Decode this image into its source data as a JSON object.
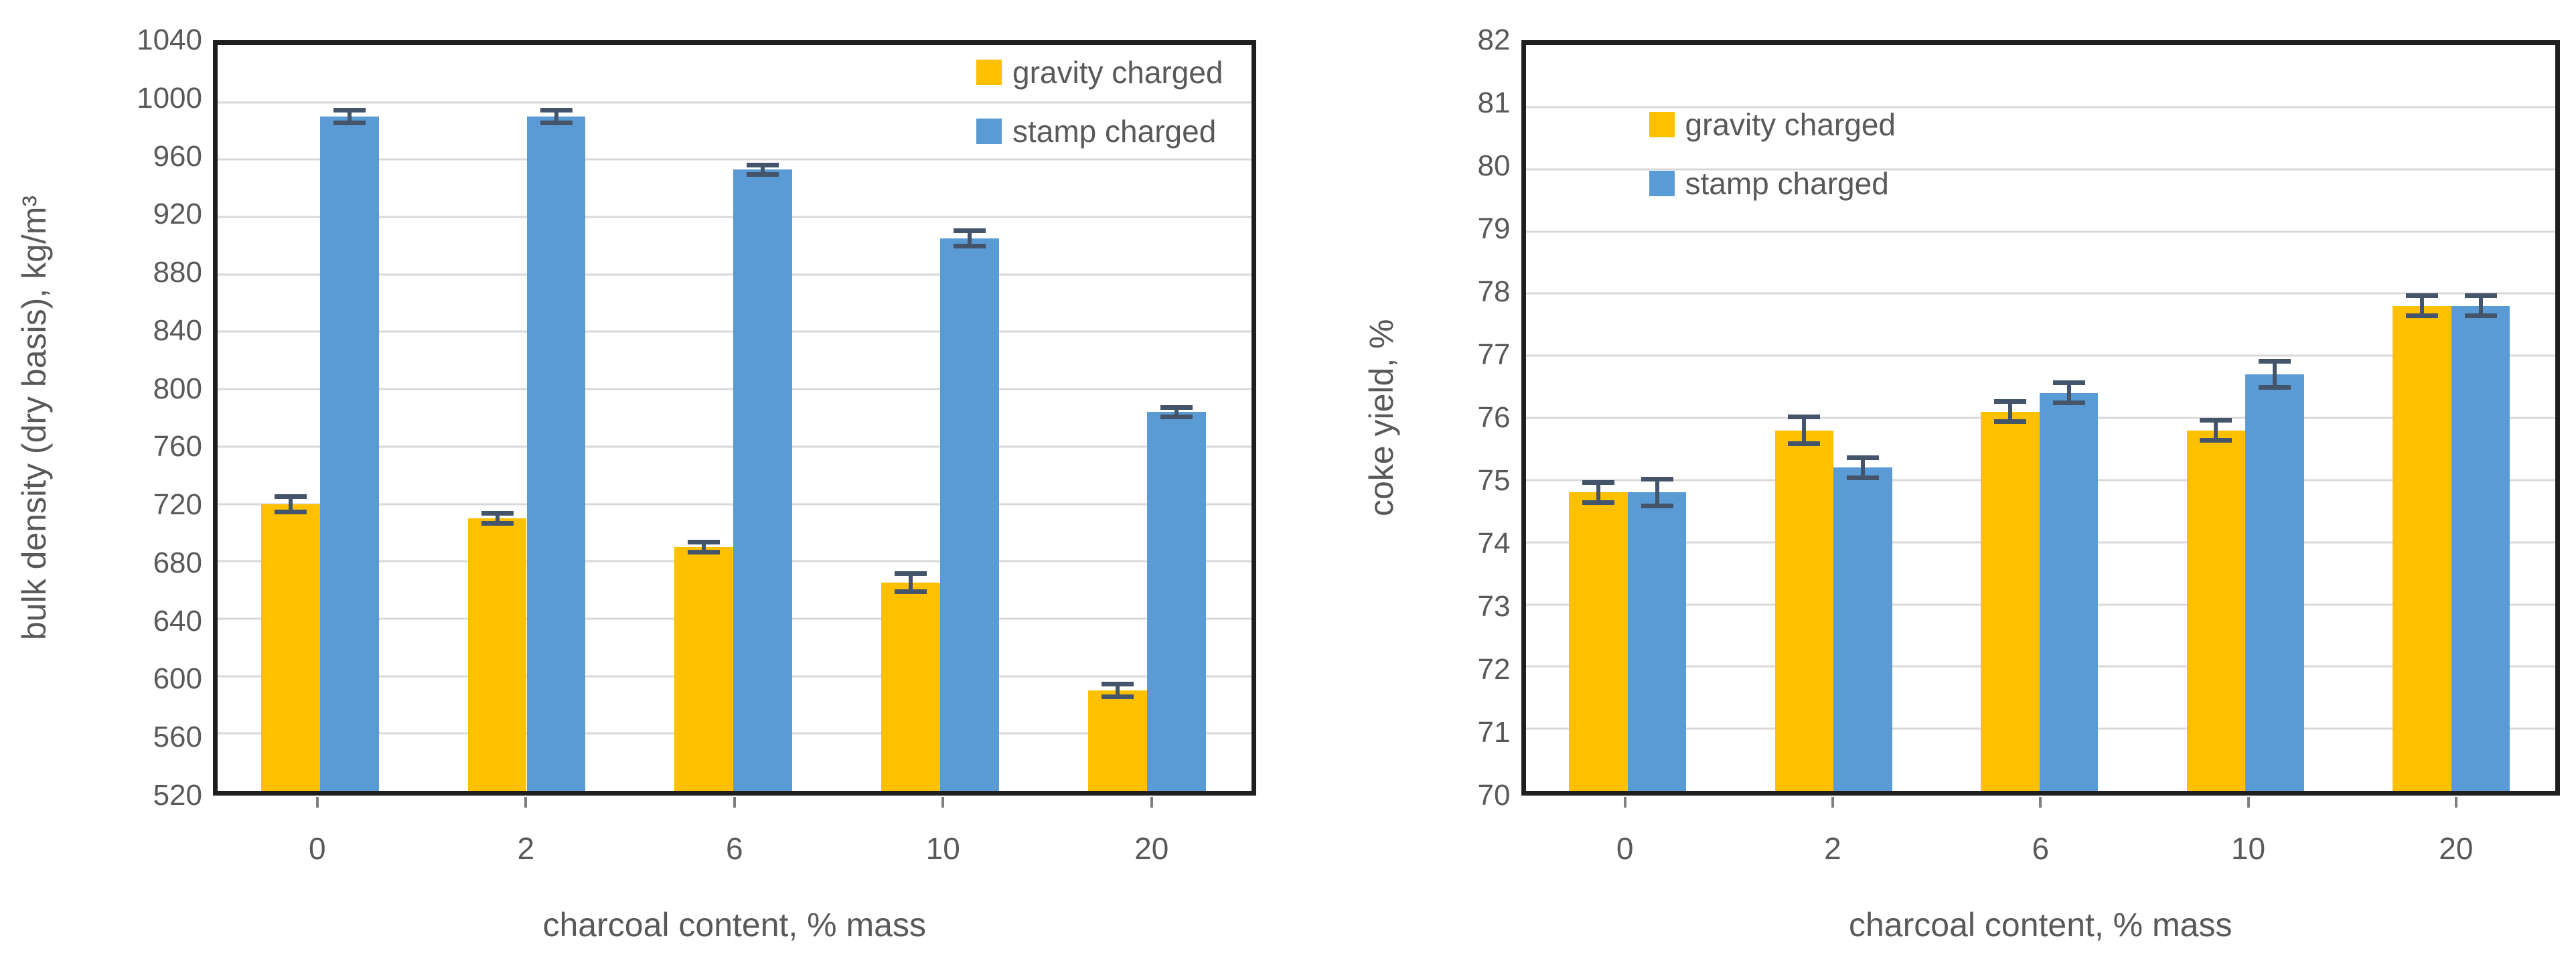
{
  "figure": {
    "background": "#ffffff"
  },
  "colors": {
    "gravity_series": "#FFC000",
    "stamp_series": "#5B9BD5",
    "gridline": "#D9D9D9",
    "axis_text": "#595959",
    "frame": "#1f1f1f",
    "error_bar": "#44546A"
  },
  "chart_data": [
    {
      "type": "bar",
      "title": "",
      "categories": [
        "0",
        "2",
        "6",
        "10",
        "20"
      ],
      "xlabel": "charcoal content, % mass",
      "ylabel": "bulk density (dry basis), kg/m³",
      "ylim": [
        520,
        1040
      ],
      "ytick_step": 40,
      "grid": true,
      "legend_position": "top-right",
      "series": [
        {
          "name": "gravity charged",
          "color": "#FFC000",
          "values": [
            720,
            710,
            690,
            665,
            590
          ],
          "errors": [
            7,
            5,
            5,
            8,
            6
          ]
        },
        {
          "name": "stamp charged",
          "color": "#5B9BD5",
          "values": [
            990,
            990,
            953,
            905,
            784
          ],
          "errors": [
            6,
            6,
            5,
            7,
            5
          ]
        }
      ]
    },
    {
      "type": "bar",
      "title": "",
      "categories": [
        "0",
        "2",
        "6",
        "10",
        "20"
      ],
      "xlabel": "charcoal content, % mass",
      "ylabel": "coke yield, %",
      "ylim": [
        70,
        82
      ],
      "ytick_step": 1,
      "grid": true,
      "legend_position": "top-left",
      "series": [
        {
          "name": "gravity charged",
          "color": "#FFC000",
          "values": [
            74.8,
            75.8,
            76.1,
            75.8,
            77.8
          ],
          "errors": [
            0.2,
            0.25,
            0.2,
            0.2,
            0.2
          ]
        },
        {
          "name": "stamp charged",
          "color": "#5B9BD5",
          "values": [
            74.8,
            75.2,
            76.4,
            76.7,
            77.8
          ],
          "errors": [
            0.25,
            0.2,
            0.2,
            0.25,
            0.2
          ]
        }
      ]
    }
  ]
}
